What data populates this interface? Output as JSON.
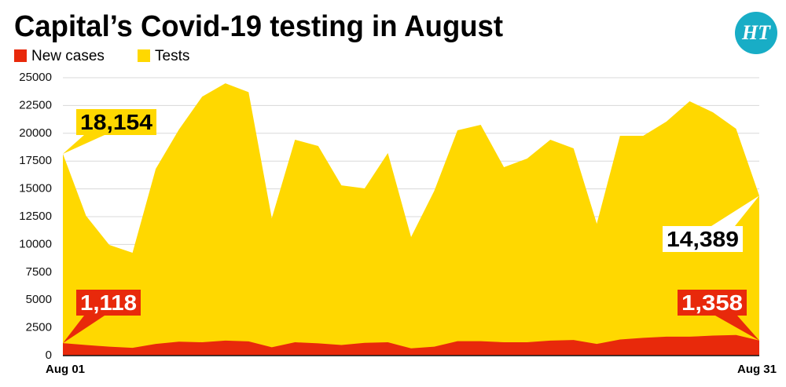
{
  "chart_data": {
    "type": "area",
    "title": "Capital’s Covid-19 testing in August",
    "logo": "HT",
    "categories": [
      "Aug 01",
      null,
      null,
      null,
      null,
      null,
      null,
      null,
      null,
      null,
      null,
      null,
      null,
      null,
      null,
      null,
      null,
      null,
      null,
      null,
      null,
      null,
      null,
      null,
      null,
      null,
      null,
      null,
      null,
      null,
      "Aug 31"
    ],
    "series": [
      {
        "name": "New cases",
        "color": "#e8290b",
        "values": [
          1118,
          950,
          800,
          700,
          1050,
          1250,
          1200,
          1350,
          1280,
          750,
          1200,
          1100,
          950,
          1150,
          1200,
          650,
          800,
          1300,
          1300,
          1200,
          1200,
          1350,
          1400,
          1050,
          1450,
          1600,
          1700,
          1700,
          1800,
          1850,
          1358
        ],
        "value_labels": [
          "1,118",
          null,
          null,
          null,
          null,
          null,
          null,
          null,
          null,
          null,
          null,
          null,
          null,
          null,
          null,
          null,
          null,
          null,
          null,
          null,
          null,
          null,
          null,
          null,
          null,
          null,
          null,
          null,
          null,
          null,
          "1,358"
        ]
      },
      {
        "name": "Tests",
        "color": "#ffd800",
        "values": [
          18154,
          12570,
          9960,
          9250,
          16800,
          20340,
          23300,
          24500,
          23700,
          12360,
          19420,
          18860,
          15320,
          15040,
          18220,
          10660,
          14830,
          20270,
          20760,
          16950,
          17730,
          19420,
          18640,
          11860,
          19770,
          19770,
          21050,
          22880,
          21890,
          20410,
          14389
        ],
        "value_labels": [
          "18,154",
          null,
          null,
          null,
          null,
          null,
          null,
          null,
          null,
          null,
          null,
          null,
          null,
          null,
          null,
          null,
          null,
          null,
          null,
          null,
          null,
          null,
          null,
          null,
          null,
          null,
          null,
          null,
          null,
          null,
          "14,389"
        ]
      }
    ],
    "ylim": [
      0,
      25000
    ],
    "yticks": [
      0,
      2500,
      5000,
      7500,
      10000,
      12500,
      15000,
      17500,
      20000,
      22500,
      25000
    ],
    "grid": true,
    "legend": "top-left"
  }
}
